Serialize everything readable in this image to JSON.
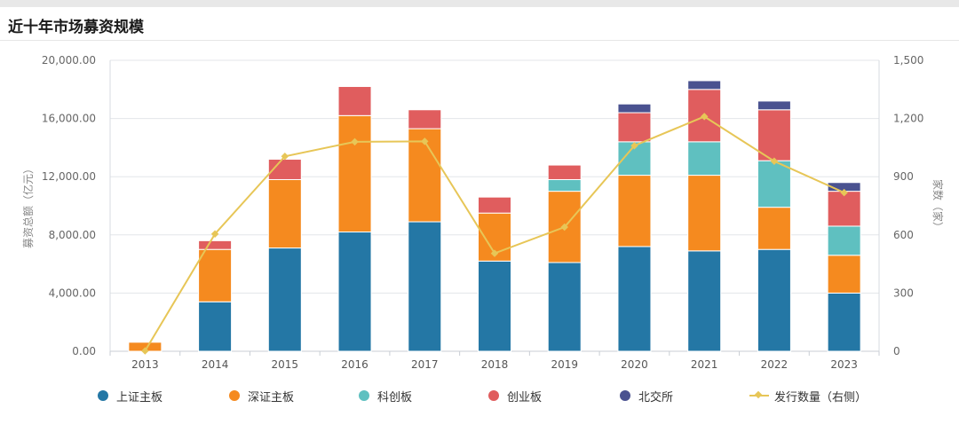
{
  "page": {
    "title": "近十年市场募资规模"
  },
  "chart_data": {
    "type": "bar",
    "stacked": true,
    "categories": [
      "2013",
      "2014",
      "2015",
      "2016",
      "2017",
      "2018",
      "2019",
      "2020",
      "2021",
      "2022",
      "2023"
    ],
    "series": [
      {
        "name": "上证主板",
        "color": "#2477a5",
        "values": [
          0,
          3400,
          7100,
          8200,
          8900,
          6200,
          6100,
          7200,
          6900,
          7000,
          4000
        ]
      },
      {
        "name": "深证主板",
        "color": "#f58a1f",
        "values": [
          620,
          3600,
          4700,
          8000,
          6400,
          3300,
          4900,
          4900,
          5200,
          2900,
          2600
        ]
      },
      {
        "name": "科创板",
        "color": "#5fc0c0",
        "values": [
          0,
          0,
          0,
          0,
          0,
          0,
          800,
          2300,
          2300,
          3200,
          2000
        ]
      },
      {
        "name": "创业板",
        "color": "#e05d5e",
        "values": [
          0,
          600,
          1400,
          2000,
          1300,
          1100,
          1000,
          2000,
          3600,
          3500,
          2400
        ]
      },
      {
        "name": "北交所",
        "color": "#4a5290",
        "values": [
          0,
          0,
          0,
          0,
          0,
          0,
          0,
          600,
          600,
          600,
          600
        ]
      }
    ],
    "line_series": {
      "name": "发行数量（右侧）",
      "color": "#e7c657",
      "values": [
        2,
        605,
        1005,
        1080,
        1082,
        505,
        640,
        1060,
        1210,
        980,
        818
      ]
    },
    "y_left": {
      "label": "募资总额（亿元）",
      "min": 0,
      "max": 20000,
      "ticks": [
        "0.00",
        "4,000.00",
        "8,000.00",
        "12,000.00",
        "16,000.00",
        "20,000.00"
      ]
    },
    "y_right": {
      "label": "家数（家）",
      "min": 0,
      "max": 1500,
      "ticks": [
        "0",
        "300",
        "600",
        "900",
        "1,200",
        "1,500"
      ]
    },
    "grid": true,
    "legend_position": "bottom"
  },
  "legend": [
    {
      "label": "上证主板",
      "color": "#2477a5",
      "kind": "dot"
    },
    {
      "label": "深证主板",
      "color": "#f58a1f",
      "kind": "dot"
    },
    {
      "label": "科创板",
      "color": "#5fc0c0",
      "kind": "dot"
    },
    {
      "label": "创业板",
      "color": "#e05d5e",
      "kind": "dot"
    },
    {
      "label": "北交所",
      "color": "#4a5290",
      "kind": "dot"
    },
    {
      "label": "发行数量（右侧）",
      "color": "#e7c657",
      "kind": "line"
    }
  ]
}
